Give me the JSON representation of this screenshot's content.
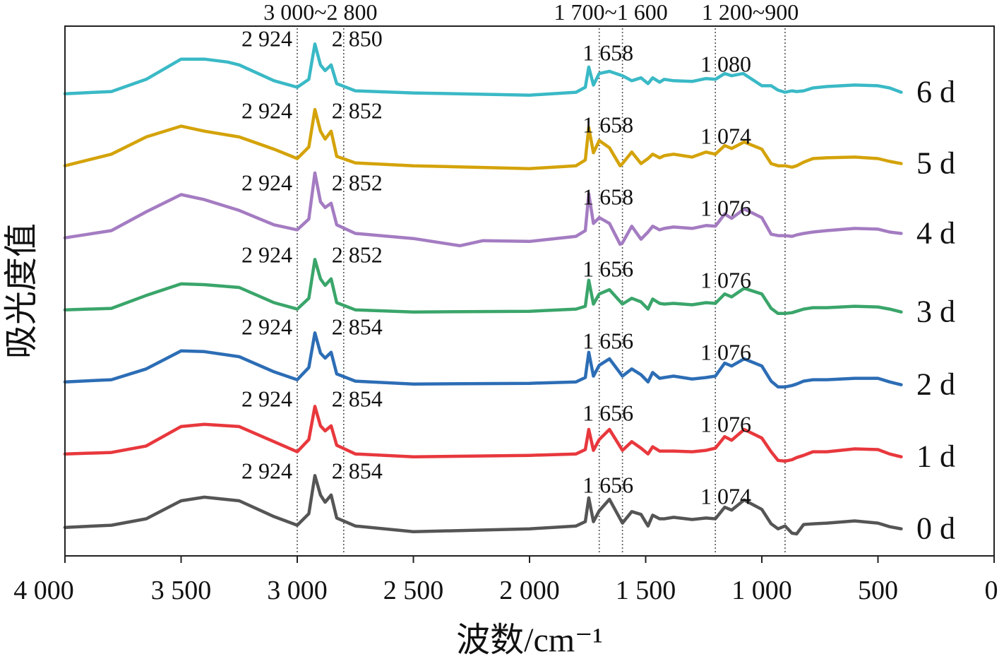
{
  "chart_data": {
    "type": "line",
    "xlabel": "波数/cm⁻¹",
    "ylabel": "吸光度值",
    "xlim": [
      4000,
      0
    ],
    "x_reversed": true,
    "xticks": [
      4000,
      3500,
      3000,
      2500,
      2000,
      1500,
      1000,
      500,
      0
    ],
    "xtick_labels": [
      "4 000",
      "3 500",
      "3 000",
      "2 500",
      "2 000",
      "1 500",
      "1 000",
      "500",
      "0"
    ],
    "ylim": [
      0,
      7
    ],
    "grid": false,
    "legend": "labels at right end of each curve",
    "reference_lines": [
      3000,
      2800,
      1700,
      1600,
      1200,
      900
    ],
    "range_labels": [
      {
        "text": "3 000~2 800",
        "center": 2900
      },
      {
        "text": "1 700~1 600",
        "center": 1650
      },
      {
        "text": "1 200~900",
        "center": 1050
      }
    ],
    "series": [
      {
        "name": "0 d",
        "color": "#555555",
        "offset": 0.15,
        "x": [
          4000,
          3800,
          3650,
          3500,
          3400,
          3250,
          3100,
          3000,
          2950,
          2924,
          2900,
          2880,
          2854,
          2830,
          2750,
          2500,
          2000,
          1800,
          1760,
          1745,
          1725,
          1700,
          1656,
          1600,
          1560,
          1520,
          1490,
          1470,
          1440,
          1420,
          1380,
          1300,
          1240,
          1200,
          1160,
          1130,
          1076,
          1000,
          960,
          930,
          900,
          870,
          850,
          820,
          780,
          720,
          600,
          500,
          450,
          400
        ],
        "y": [
          0,
          0.03,
          0.12,
          0.37,
          0.42,
          0.37,
          0.15,
          0.03,
          0.19,
          0.72,
          0.45,
          0.35,
          0.45,
          0.13,
          0.02,
          -0.06,
          -0.02,
          0.02,
          0.08,
          0.41,
          0.08,
          0.23,
          0.39,
          0.06,
          0.22,
          0.18,
          0.02,
          0.17,
          0.12,
          0.12,
          0.14,
          0.11,
          0.13,
          0.12,
          0.28,
          0.24,
          0.38,
          0.25,
          0.05,
          -0.02,
          0.02,
          -0.08,
          -0.09,
          0.04,
          0.05,
          0.06,
          0.09,
          0.06,
          0.01,
          -0.02
        ]
      },
      {
        "name": "1 d",
        "color": "#e8383d",
        "offset": 1.15,
        "x": [
          4000,
          3800,
          3650,
          3500,
          3400,
          3250,
          3100,
          3000,
          2950,
          2924,
          2900,
          2880,
          2854,
          2830,
          2750,
          2500,
          2000,
          1800,
          1760,
          1745,
          1725,
          1700,
          1656,
          1600,
          1560,
          1520,
          1490,
          1470,
          1440,
          1420,
          1380,
          1300,
          1240,
          1200,
          1160,
          1130,
          1076,
          1000,
          960,
          930,
          900,
          870,
          850,
          820,
          780,
          720,
          600,
          500,
          450,
          400
        ],
        "y": [
          0.02,
          0.04,
          0.13,
          0.4,
          0.43,
          0.4,
          0.19,
          0.05,
          0.22,
          0.68,
          0.41,
          0.34,
          0.41,
          0.14,
          0.02,
          -0.02,
          0.0,
          0.02,
          0.08,
          0.36,
          0.07,
          0.22,
          0.36,
          0.07,
          0.19,
          0.1,
          0.02,
          0.12,
          0.06,
          0.06,
          0.06,
          0.05,
          0.07,
          0.1,
          0.26,
          0.21,
          0.36,
          0.24,
          0.05,
          -0.07,
          -0.08,
          -0.06,
          -0.03,
          0.0,
          0.05,
          0.05,
          0.09,
          0.08,
          0.02,
          -0.02
        ]
      },
      {
        "name": "2 d",
        "color": "#2c6db5",
        "offset": 2.15,
        "x": [
          4000,
          3800,
          3650,
          3500,
          3400,
          3250,
          3100,
          3000,
          2950,
          2924,
          2900,
          2880,
          2854,
          2830,
          2750,
          2500,
          2000,
          1800,
          1760,
          1745,
          1725,
          1700,
          1656,
          1600,
          1560,
          1520,
          1490,
          1470,
          1440,
          1420,
          1380,
          1300,
          1240,
          1200,
          1160,
          1130,
          1076,
          1000,
          960,
          930,
          900,
          870,
          850,
          820,
          780,
          720,
          600,
          500,
          450,
          400
        ],
        "y": [
          0.02,
          0.05,
          0.2,
          0.45,
          0.44,
          0.37,
          0.16,
          0.05,
          0.22,
          0.7,
          0.42,
          0.35,
          0.43,
          0.13,
          0.03,
          -0.01,
          0.0,
          0.02,
          0.08,
          0.43,
          0.1,
          0.25,
          0.34,
          0.1,
          0.2,
          0.12,
          0.02,
          0.15,
          0.07,
          0.08,
          0.1,
          0.06,
          0.08,
          0.1,
          0.28,
          0.24,
          0.34,
          0.24,
          0.03,
          -0.05,
          -0.05,
          -0.03,
          -0.01,
          0.03,
          0.05,
          0.05,
          0.07,
          0.07,
          0.02,
          -0.02
        ]
      },
      {
        "name": "3 d",
        "color": "#3aa56a",
        "offset": 3.15,
        "x": [
          4000,
          3800,
          3650,
          3500,
          3400,
          3250,
          3100,
          3000,
          2950,
          2924,
          2900,
          2880,
          2854,
          2830,
          2750,
          2500,
          2000,
          1800,
          1760,
          1745,
          1725,
          1700,
          1656,
          1600,
          1560,
          1520,
          1490,
          1470,
          1440,
          1420,
          1380,
          1300,
          1240,
          1200,
          1160,
          1130,
          1076,
          1000,
          960,
          930,
          900,
          870,
          850,
          820,
          780,
          720,
          600,
          500,
          450,
          400
        ],
        "y": [
          0.02,
          0.04,
          0.22,
          0.38,
          0.37,
          0.33,
          0.12,
          0.03,
          0.18,
          0.72,
          0.45,
          0.36,
          0.45,
          0.12,
          0.02,
          -0.01,
          0.0,
          0.03,
          0.07,
          0.43,
          0.1,
          0.24,
          0.3,
          0.1,
          0.18,
          0.13,
          0.03,
          0.17,
          0.11,
          0.1,
          0.11,
          0.09,
          0.12,
          0.11,
          0.24,
          0.2,
          0.32,
          0.24,
          0.04,
          -0.03,
          -0.03,
          -0.02,
          0.0,
          0.03,
          0.05,
          0.05,
          0.07,
          0.06,
          0.03,
          -0.01
        ]
      },
      {
        "name": "4 d",
        "color": "#a47cc2",
        "offset": 4.15,
        "x": [
          4000,
          3800,
          3650,
          3500,
          3400,
          3250,
          3100,
          3000,
          2950,
          2924,
          2900,
          2880,
          2854,
          2830,
          2750,
          2500,
          2300,
          2200,
          2000,
          1800,
          1760,
          1745,
          1725,
          1700,
          1656,
          1610,
          1600,
          1560,
          1520,
          1490,
          1470,
          1440,
          1420,
          1380,
          1300,
          1240,
          1200,
          1160,
          1130,
          1076,
          1000,
          960,
          930,
          900,
          870,
          850,
          820,
          780,
          720,
          600,
          500,
          450,
          400
        ],
        "y": [
          0.02,
          0.12,
          0.38,
          0.62,
          0.55,
          0.4,
          0.2,
          0.13,
          0.28,
          0.92,
          0.52,
          0.44,
          0.5,
          0.2,
          0.08,
          0.01,
          -0.09,
          -0.02,
          -0.03,
          0.04,
          0.12,
          0.63,
          0.22,
          0.3,
          0.22,
          -0.07,
          -0.05,
          0.18,
          0.0,
          0.1,
          0.18,
          0.13,
          0.15,
          0.17,
          0.15,
          0.19,
          0.18,
          0.35,
          0.29,
          0.42,
          0.3,
          0.07,
          0.05,
          0.05,
          0.04,
          0.06,
          0.08,
          0.1,
          0.12,
          0.15,
          0.14,
          0.1,
          0.08
        ]
      },
      {
        "name": "5 d",
        "color": "#d4a30a",
        "offset": 5.15,
        "x": [
          4000,
          3800,
          3650,
          3500,
          3400,
          3250,
          3100,
          3000,
          2950,
          2924,
          2900,
          2880,
          2854,
          2830,
          2750,
          2500,
          2000,
          1800,
          1760,
          1745,
          1725,
          1700,
          1656,
          1610,
          1600,
          1560,
          1520,
          1490,
          1470,
          1440,
          1420,
          1380,
          1300,
          1240,
          1200,
          1160,
          1130,
          1076,
          1000,
          960,
          930,
          900,
          870,
          850,
          820,
          780,
          720,
          600,
          500,
          450,
          400
        ],
        "y": [
          0.02,
          0.18,
          0.42,
          0.57,
          0.5,
          0.42,
          0.25,
          0.12,
          0.28,
          0.8,
          0.5,
          0.39,
          0.5,
          0.15,
          0.06,
          0.02,
          -0.02,
          0.02,
          0.1,
          0.55,
          0.2,
          0.37,
          0.27,
          0.02,
          0.05,
          0.21,
          0.05,
          0.12,
          0.18,
          0.13,
          0.16,
          0.18,
          0.14,
          0.21,
          0.18,
          0.3,
          0.26,
          0.35,
          0.25,
          0.05,
          0.02,
          0.02,
          0.0,
          0.02,
          0.07,
          0.12,
          0.13,
          0.14,
          0.12,
          0.08,
          0.05
        ]
      },
      {
        "name": "6 d",
        "color": "#3ab9c6",
        "offset": 6.15,
        "x": [
          4000,
          3800,
          3650,
          3500,
          3400,
          3300,
          3250,
          3100,
          3000,
          2950,
          2924,
          2900,
          2880,
          2854,
          2830,
          2750,
          2500,
          2000,
          1800,
          1760,
          1745,
          1725,
          1700,
          1656,
          1600,
          1560,
          1520,
          1490,
          1470,
          1440,
          1420,
          1380,
          1300,
          1240,
          1200,
          1160,
          1130,
          1080,
          1000,
          960,
          930,
          900,
          870,
          850,
          820,
          780,
          720,
          600,
          500,
          450,
          400
        ],
        "y": [
          0.02,
          0.05,
          0.22,
          0.5,
          0.5,
          0.46,
          0.42,
          0.2,
          0.11,
          0.22,
          0.71,
          0.42,
          0.34,
          0.42,
          0.16,
          0.06,
          0.03,
          0.0,
          0.04,
          0.11,
          0.39,
          0.14,
          0.3,
          0.33,
          0.27,
          0.2,
          0.24,
          0.16,
          0.24,
          0.18,
          0.22,
          0.2,
          0.19,
          0.23,
          0.22,
          0.3,
          0.27,
          0.3,
          0.13,
          0.13,
          0.07,
          0.04,
          0.06,
          0.05,
          0.06,
          0.1,
          0.12,
          0.14,
          0.13,
          0.1,
          0.04
        ]
      }
    ],
    "peak_labels": [
      {
        "series": "0 d",
        "labels": [
          "2 924",
          "2 854",
          "1 656",
          "1 074"
        ]
      },
      {
        "series": "1 d",
        "labels": [
          "2 924",
          "2 854",
          "1 656",
          "1 076"
        ]
      },
      {
        "series": "2 d",
        "labels": [
          "2 924",
          "2 854",
          "1 656",
          "1 076"
        ]
      },
      {
        "series": "3 d",
        "labels": [
          "2 924",
          "2 852",
          "1 656",
          "1 076"
        ]
      },
      {
        "series": "4 d",
        "labels": [
          "2 924",
          "2 852",
          "1 658",
          "1 076"
        ]
      },
      {
        "series": "5 d",
        "labels": [
          "2 924",
          "2 852",
          "1 658",
          "1 074"
        ]
      },
      {
        "series": "6 d",
        "labels": [
          "2 924",
          "2 850",
          "1 658",
          "1 080"
        ]
      }
    ]
  }
}
